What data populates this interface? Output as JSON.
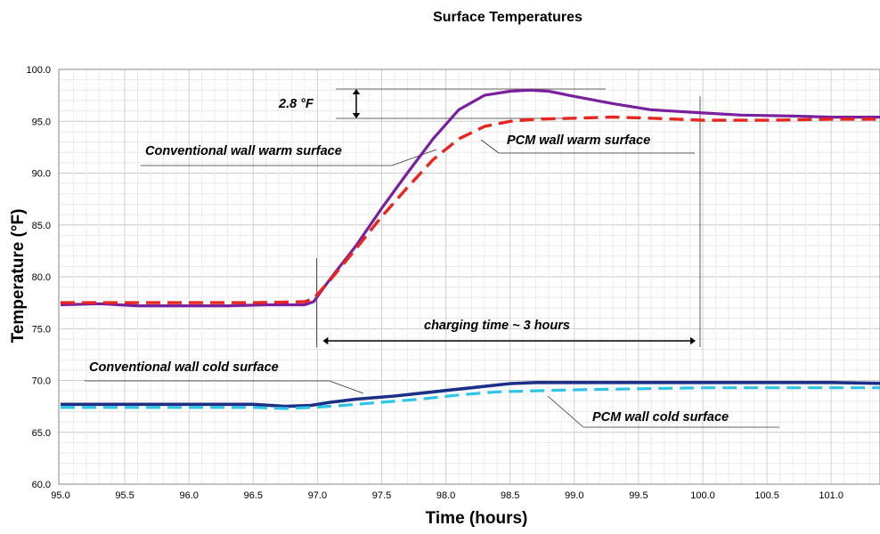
{
  "chart_data": {
    "type": "line",
    "title": "Surface Temperatures",
    "xlabel": "Time (hours)",
    "ylabel": "Temperature (°F)",
    "xlim": [
      95.0,
      101.5
    ],
    "ylim": [
      60.0,
      100.0
    ],
    "x_ticks": [
      "95.0",
      "95.5",
      "96.0",
      "96.5",
      "97.0",
      "97.5",
      "98.0",
      "98.5",
      "99.0",
      "99.5",
      "100.0",
      "100.5",
      "101.0"
    ],
    "y_ticks": [
      "60.0",
      "65.0",
      "70.0",
      "75.0",
      "80.0",
      "85.0",
      "90.0",
      "95.0",
      "100.0"
    ],
    "grid": true,
    "series": [
      {
        "name": "Conventional wall warm surface",
        "color": "#7a1f9e",
        "style": "solid",
        "x": [
          95.0,
          95.3,
          95.6,
          96.0,
          96.3,
          96.6,
          96.9,
          96.97,
          97.1,
          97.3,
          97.5,
          97.7,
          97.9,
          98.1,
          98.3,
          98.5,
          98.65,
          98.8,
          99.0,
          99.3,
          99.6,
          100.0,
          100.3,
          100.7,
          101.0,
          101.5
        ],
        "y": [
          77.3,
          77.4,
          77.2,
          77.2,
          77.2,
          77.3,
          77.3,
          77.6,
          79.8,
          83.0,
          86.6,
          90.0,
          93.3,
          96.1,
          97.5,
          97.9,
          98.0,
          97.9,
          97.4,
          96.7,
          96.1,
          95.8,
          95.6,
          95.5,
          95.4,
          95.4
        ]
      },
      {
        "name": "PCM wall warm surface",
        "color": "#e8261d",
        "style": "dashed",
        "x": [
          95.0,
          95.5,
          96.0,
          96.5,
          96.9,
          96.97,
          97.1,
          97.3,
          97.5,
          97.7,
          97.9,
          98.1,
          98.3,
          98.5,
          98.7,
          99.0,
          99.3,
          99.6,
          100.0,
          100.5,
          101.0,
          101.5
        ],
        "y": [
          77.5,
          77.5,
          77.5,
          77.5,
          77.6,
          77.9,
          79.7,
          82.7,
          85.8,
          88.6,
          91.3,
          93.3,
          94.5,
          95.0,
          95.2,
          95.3,
          95.4,
          95.3,
          95.1,
          95.1,
          95.2,
          95.2
        ]
      },
      {
        "name": "Conventional wall cold surface",
        "color": "#1c2f86",
        "style": "solid",
        "x": [
          95.0,
          95.5,
          96.0,
          96.5,
          96.75,
          96.95,
          97.1,
          97.3,
          97.6,
          97.9,
          98.2,
          98.5,
          98.7,
          99.0,
          99.5,
          100.0,
          100.5,
          101.0,
          101.5
        ],
        "y": [
          67.7,
          67.7,
          67.7,
          67.7,
          67.5,
          67.6,
          67.9,
          68.2,
          68.5,
          68.9,
          69.3,
          69.7,
          69.8,
          69.8,
          69.8,
          69.8,
          69.8,
          69.8,
          69.7
        ]
      },
      {
        "name": "PCM wall cold surface",
        "color": "#2ec4e6",
        "style": "dashed",
        "x": [
          95.0,
          95.5,
          96.0,
          96.5,
          96.75,
          96.95,
          97.2,
          97.5,
          97.8,
          98.1,
          98.4,
          98.7,
          99.0,
          99.5,
          100.0,
          100.5,
          101.0,
          101.5
        ],
        "y": [
          67.4,
          67.4,
          67.4,
          67.4,
          67.3,
          67.4,
          67.6,
          67.9,
          68.2,
          68.6,
          68.9,
          69.0,
          69.1,
          69.2,
          69.3,
          69.3,
          69.3,
          69.3
        ]
      }
    ],
    "annotations": {
      "delta_label": "2.8 °F",
      "charging_label": "charging time ~ 3 hours",
      "charging_range": [
        97.0,
        100.0
      ]
    }
  }
}
